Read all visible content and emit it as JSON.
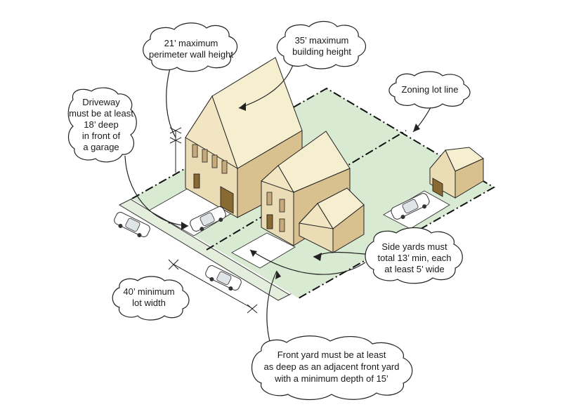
{
  "colors": {
    "yard": "#d9ead3",
    "wall_front": "#eadcb4",
    "wall_side": "#d8c08f",
    "roof_top": "#f6efcf",
    "roof_side": "#e8d7a4",
    "door": "#8a6a33",
    "sidewalk": "#e3eedd",
    "outline": "#222222"
  },
  "callouts": {
    "wall_height": {
      "lines": [
        "21’ maximum",
        "perimeter wall height"
      ]
    },
    "building_height": {
      "lines": [
        "35’ maximum",
        "building height"
      ]
    },
    "lot_line": {
      "lines": [
        "Zoning lot line"
      ]
    },
    "driveway": {
      "lines": [
        "Driveway",
        "must be at least",
        "18’ deep",
        "in front of",
        "a garage"
      ]
    },
    "side_yards": {
      "lines": [
        "Side yards must",
        "total 13’ min, each",
        "at least 5’ wide"
      ]
    },
    "lot_width": {
      "lines": [
        "40’ minimum",
        "lot width"
      ]
    },
    "front_yard": {
      "lines": [
        "Front yard must be at least",
        "as deep as an adjacent front yard",
        "with a minimum depth of 15’"
      ]
    }
  }
}
